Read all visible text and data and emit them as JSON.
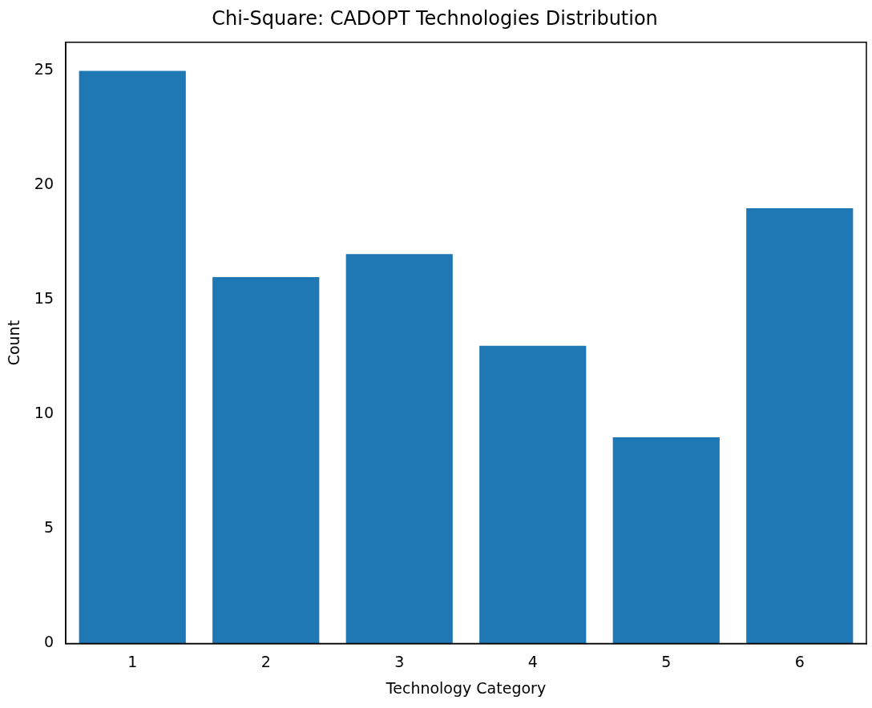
{
  "chart_data": {
    "type": "bar",
    "title": "Chi-Square: CADOPT Technologies Distribution",
    "xlabel": "Technology Category",
    "ylabel": "Count",
    "categories": [
      "1",
      "2",
      "3",
      "4",
      "5",
      "6"
    ],
    "values": [
      25,
      16,
      17,
      13,
      9,
      19
    ],
    "color": "#1f77b4",
    "ylim": [
      0,
      26.25
    ],
    "yticks": [
      0,
      5,
      10,
      15,
      20,
      25
    ],
    "grid": false,
    "legend": false
  }
}
